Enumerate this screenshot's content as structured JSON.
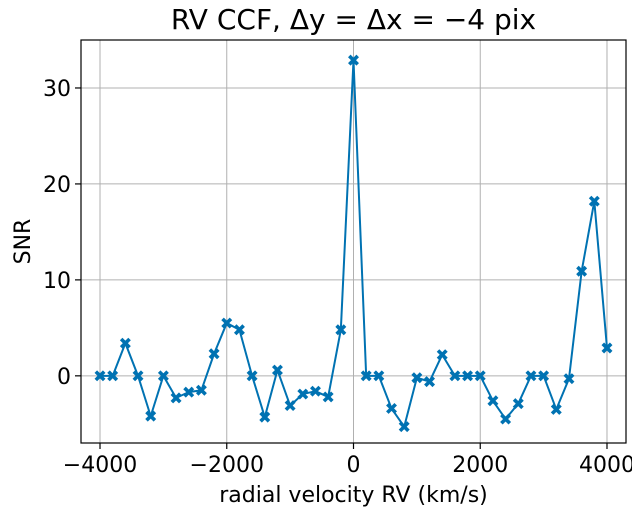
{
  "chart_data": {
    "type": "line",
    "title": "RV CCF, Δy = Δx = −4 pix",
    "xlabel": "radial velocity RV (km/s)",
    "ylabel": "SNR",
    "xlim": [
      -4300,
      4300
    ],
    "ylim": [
      -7,
      35
    ],
    "xticks": [
      -4000,
      -2000,
      0,
      2000,
      4000
    ],
    "xtick_labels": [
      "−4000",
      "−2000",
      "0",
      "2000",
      "4000"
    ],
    "yticks": [
      0,
      10,
      20,
      30
    ],
    "ytick_labels": [
      "0",
      "10",
      "20",
      "30"
    ],
    "grid": true,
    "color": "#0072b2",
    "marker": "x-filled",
    "series": [
      {
        "x": [
          -4000,
          -3800,
          -3600,
          -3400,
          -3200,
          -3000,
          -2800,
          -2600,
          -2400,
          -2200,
          -2000,
          -1800,
          -1600,
          -1400,
          -1200,
          -1000,
          -800,
          -600,
          -400,
          -200,
          0,
          200,
          400,
          600,
          800,
          1000,
          1200,
          1400,
          1600,
          1800,
          2000,
          2200,
          2400,
          2600,
          2800,
          3000,
          3200,
          3400,
          3600,
          3800,
          4000
        ],
        "values": [
          0.0,
          0.0,
          3.4,
          0.0,
          -4.2,
          0.0,
          -2.3,
          -1.7,
          -1.5,
          2.3,
          5.5,
          4.8,
          0.0,
          -4.3,
          0.6,
          -3.1,
          -1.9,
          -1.6,
          -2.2,
          4.8,
          32.9,
          0.0,
          0.0,
          -3.4,
          -5.3,
          -0.2,
          -0.6,
          2.2,
          0.0,
          0.0,
          0.0,
          -2.6,
          -4.5,
          -2.9,
          0.0,
          0.0,
          -3.5,
          -0.3,
          10.9,
          18.2,
          2.9
        ]
      }
    ]
  }
}
